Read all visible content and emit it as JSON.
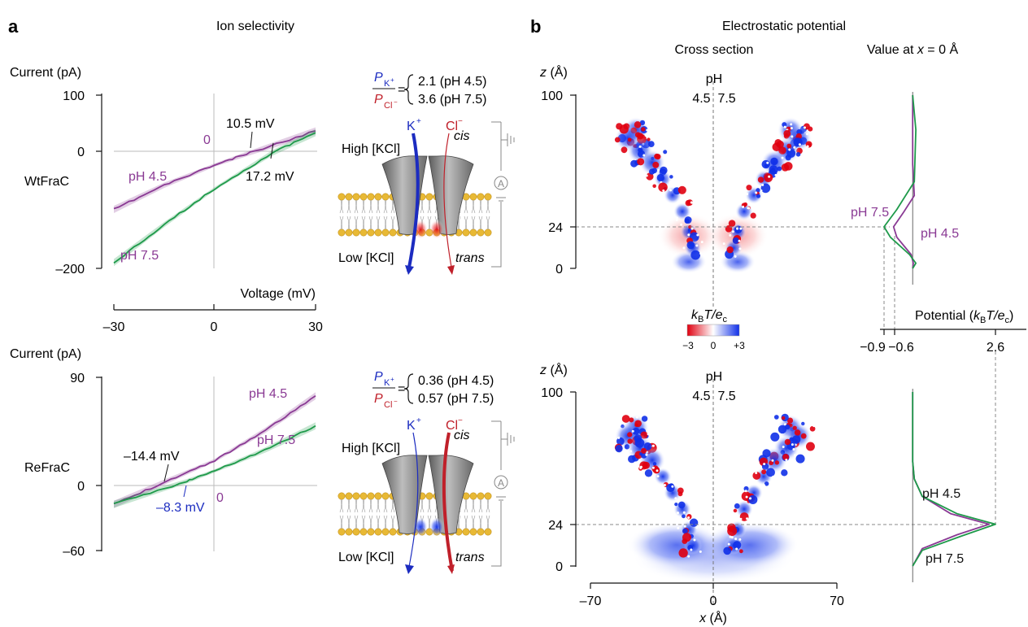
{
  "panel_a": {
    "letter": "a",
    "title": "Ion selectivity",
    "x_axis_label": "Voltage (mV)",
    "x_ticks": [
      "–30",
      "0",
      "30"
    ]
  },
  "panel_b": {
    "letter": "b",
    "title": "Electrostatic potential",
    "cross_section_label": "Cross section",
    "value_label_prefix": "Value at ",
    "value_label_var": "x",
    "value_label_suffix": " = 0 Å",
    "z_label": "z",
    "z_unit": " (Å)",
    "ph_label": "pH",
    "ph_values": "4.5  7.5",
    "colorbar": {
      "label_k": "k",
      "label_b": "B",
      "label_t": "T/",
      "label_e": "e",
      "label_c": "c",
      "ticks": [
        "−3",
        "0",
        "+3"
      ],
      "colors": {
        "negative": "#e00010",
        "zero": "#ffffff",
        "positive": "#1030e8"
      }
    },
    "potential_axis_label": "Potential (",
    "potential_ticks": [
      "−0.9",
      "−0.6",
      "2.6"
    ],
    "x_axis_var": "x",
    "x_axis_unit": " (Å)",
    "x_ticks": [
      "–70",
      "0",
      "70"
    ],
    "z_ticks": [
      "100",
      "24",
      "0"
    ],
    "top_profile_labels": {
      "ph75": "pH 7.5",
      "ph45": "pH 4.5"
    },
    "bottom_profile_labels": {
      "ph45": "pH 4.5",
      "ph75": "pH 7.5"
    }
  },
  "colors": {
    "ph45": "#8a3a94",
    "ph75": "#1e9a4a",
    "k_ion": "#1c2cc0",
    "cl_ion": "#c0202a"
  },
  "schematic": {
    "high": "High [KCl]",
    "low": "Low [KCl]",
    "cis": "cis",
    "trans": "trans",
    "ion_k": "K",
    "ion_k_sup": "+",
    "ion_cl": "Cl",
    "ion_cl_sup": "−",
    "ratio_p": "P",
    "ratio_k_sub": "K",
    "ratio_cl_sub": "Cl",
    "amp": "A"
  },
  "chart_data": [
    {
      "type": "line",
      "name": "WtFraC",
      "ylabel": "Current (pA)",
      "xlabel": "Voltage (mV)",
      "xlim": [
        -30,
        30
      ],
      "ylim": [
        -200,
        100
      ],
      "y_ticks": [
        "100",
        "0",
        "–200"
      ],
      "zero_label": "0",
      "series": [
        {
          "name": "pH 4.5",
          "x": [
            -30,
            -15,
            0,
            10.5,
            30
          ],
          "y": [
            -98,
            -56,
            -21,
            0,
            38
          ]
        },
        {
          "name": "pH 7.5",
          "x": [
            -30,
            -15,
            0,
            17.2,
            30
          ],
          "y": [
            -190,
            -124,
            -62,
            0,
            35
          ]
        }
      ],
      "annotations": [
        "10.5 mV",
        "17.2 mV"
      ],
      "selectivity": [
        {
          "ph": "pH 4.5",
          "ratio": "2.1 (pH 4.5)"
        },
        {
          "ph": "pH 7.5",
          "ratio": "3.6 (pH 7.5)"
        }
      ]
    },
    {
      "type": "line",
      "name": "ReFraC",
      "ylabel": "Current (pA)",
      "xlabel": "Voltage (mV)",
      "xlim": [
        -30,
        30
      ],
      "ylim": [
        -60,
        90
      ],
      "y_ticks": [
        "90",
        "0",
        "–60"
      ],
      "zero_label": "0",
      "series": [
        {
          "name": "pH 4.5",
          "x": [
            -30,
            -14.4,
            0,
            15,
            30
          ],
          "y": [
            -20,
            0,
            18,
            44,
            74
          ]
        },
        {
          "name": "pH 7.5",
          "x": [
            -30,
            -8.3,
            0,
            15,
            30
          ],
          "y": [
            -20,
            0,
            9,
            27,
            48
          ]
        }
      ],
      "annotations": [
        "–14.4 mV",
        "–8.3 mV"
      ],
      "selectivity": [
        {
          "ph": "pH 4.5",
          "ratio": "0.36 (pH 4.5)"
        },
        {
          "ph": "pH 7.5",
          "ratio": "0.57 (pH 7.5)"
        }
      ]
    },
    {
      "type": "line",
      "name": "WtFraC potential at x = 0",
      "xlabel": "Potential (kBT/ec)",
      "ylabel": "z (Å)",
      "xlim": [
        -0.9,
        2.6
      ],
      "ylim": [
        0,
        100
      ],
      "series": [
        {
          "name": "pH 4.5",
          "x": [
            0,
            0,
            0.05,
            -0.3,
            -0.6,
            -0.5,
            -0.05,
            0.02,
            0
          ],
          "y": [
            100,
            60,
            42,
            32,
            24,
            18,
            8,
            3,
            0
          ]
        },
        {
          "name": "pH 7.5",
          "x": [
            0,
            0.1,
            0.05,
            -0.5,
            -0.9,
            -0.7,
            -0.1,
            0.1,
            0
          ],
          "y": [
            100,
            80,
            50,
            34,
            24,
            18,
            8,
            3,
            0
          ]
        }
      ]
    },
    {
      "type": "line",
      "name": "ReFraC potential at x = 0",
      "xlabel": "Potential (kBT/ec)",
      "ylabel": "z (Å)",
      "xlim": [
        -0.9,
        2.6
      ],
      "ylim": [
        0,
        100
      ],
      "series": [
        {
          "name": "pH 4.5",
          "x": [
            0,
            0,
            0.05,
            0.3,
            1.2,
            2.4,
            1.4,
            0.3,
            0
          ],
          "y": [
            100,
            60,
            50,
            40,
            30,
            24,
            18,
            10,
            0
          ]
        },
        {
          "name": "pH 7.5",
          "x": [
            0,
            0,
            0.05,
            0.3,
            1.4,
            2.6,
            1.5,
            0.3,
            0
          ],
          "y": [
            100,
            60,
            50,
            40,
            30,
            24,
            17,
            9,
            0
          ]
        }
      ]
    }
  ]
}
